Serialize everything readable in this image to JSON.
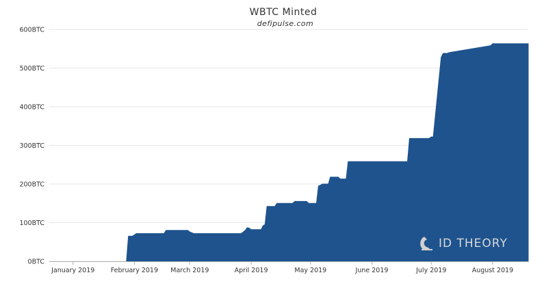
{
  "chart_data": {
    "type": "area",
    "title": "WBTC Minted",
    "subtitle": "defipulse.com",
    "xlabel": "",
    "ylabel": "",
    "y_tick_labels": [
      "0BTC",
      "100BTC",
      "200BTC",
      "300BTC",
      "400BTC",
      "500BTC",
      "600BTC"
    ],
    "y_ticks": [
      0,
      100,
      200,
      300,
      400,
      500,
      600
    ],
    "ylim": [
      0,
      600
    ],
    "x_tick_labels": [
      "January 2019",
      "February 2019",
      "March 2019",
      "April 2019",
      "May 2019",
      "June 2019",
      "July 2019",
      "August 2019"
    ],
    "x_ticks": [
      "2019-01-01",
      "2019-02-01",
      "2019-03-01",
      "2019-04-01",
      "2019-05-01",
      "2019-06-01",
      "2019-07-01",
      "2019-08-01"
    ],
    "xlim": [
      "2018-12-20",
      "2019-08-19"
    ],
    "grid": true,
    "legend": "none",
    "color": "#1f538e",
    "watermark": "ID THEORY",
    "series": [
      {
        "x": [
          "2019-01-28",
          "2019-01-29",
          "2019-01-31",
          "2019-02-02",
          "2019-02-16",
          "2019-02-17",
          "2019-02-28",
          "2019-03-01",
          "2019-03-03",
          "2019-03-27",
          "2019-03-29",
          "2019-03-30",
          "2019-03-31",
          "2019-04-01",
          "2019-04-02",
          "2019-04-06",
          "2019-04-07",
          "2019-04-08",
          "2019-04-09",
          "2019-04-10",
          "2019-04-13",
          "2019-04-14",
          "2019-04-22",
          "2019-04-23",
          "2019-04-29",
          "2019-04-30",
          "2019-05-04",
          "2019-05-05",
          "2019-05-06",
          "2019-05-07",
          "2019-05-10",
          "2019-05-11",
          "2019-05-15",
          "2019-05-16",
          "2019-05-19",
          "2019-05-20",
          "2019-05-22",
          "2019-05-23",
          "2019-06-19",
          "2019-06-20",
          "2019-06-30",
          "2019-07-01",
          "2019-07-02",
          "2019-07-06",
          "2019-07-07",
          "2019-07-09",
          "2019-07-10",
          "2019-07-31",
          "2019-08-01",
          "2019-08-19"
        ],
        "y": [
          0,
          65,
          65,
          72,
          72,
          80,
          80,
          76,
          72,
          72,
          80,
          87,
          86,
          82,
          82,
          82,
          92,
          95,
          142,
          142,
          142,
          150,
          150,
          155,
          155,
          150,
          150,
          195,
          197,
          200,
          200,
          218,
          218,
          213,
          213,
          258,
          258,
          258,
          258,
          318,
          318,
          322,
          322,
          528,
          538,
          538,
          540,
          558,
          563,
          563
        ]
      }
    ]
  }
}
